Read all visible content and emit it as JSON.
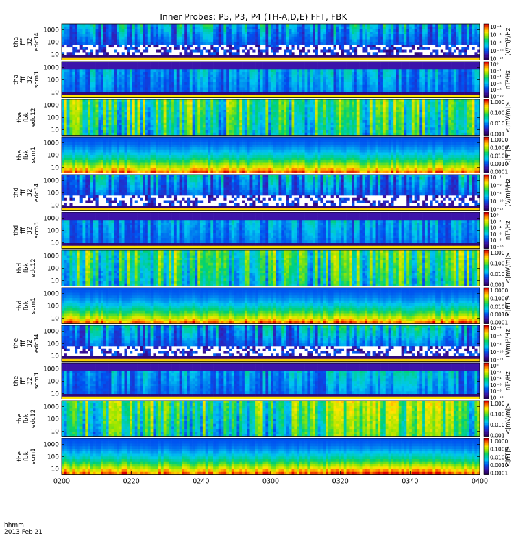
{
  "title": "Inner Probes: P5, P3, P4 (TH-A,D,E) FFT, FBK",
  "footer": {
    "line1": "hhmm",
    "line2": "2013 Feb 21"
  },
  "chart_data": {
    "type": "heatmap",
    "title": "Inner Probes: P5, P3, P4 (TH-A,D,E) FFT, FBK",
    "xlabel": "hhmm",
    "date": "2013 Feb 21",
    "x_ticks": [
      "0200",
      "0220",
      "0240",
      "0300",
      "0320",
      "0340",
      "0400"
    ],
    "x_range": [
      "0200",
      "0400"
    ],
    "y_scale": "log",
    "y_ticks": [
      "10",
      "100",
      "1000"
    ],
    "colormap": "rainbow (purple-blue-cyan-green-yellow-red)",
    "panels": [
      {
        "probe": "tha",
        "label": [
          "tha",
          "fff",
          "32",
          "edc34"
        ],
        "kind": "fff",
        "cbar_title": "(V/m)²/Hz",
        "cbar_ticks": [
          "10⁻⁴",
          "10⁻⁶",
          "10⁻⁸",
          "10⁻¹⁰",
          "10⁻¹²"
        ]
      },
      {
        "probe": "tha",
        "label": [
          "tha",
          "fff",
          "32",
          "scm3"
        ],
        "kind": "fff",
        "cbar_title": "nT²/Hz",
        "cbar_ticks": [
          "10⁰",
          "10⁻²",
          "10⁻⁴",
          "10⁻⁶",
          "10⁻⁸",
          "10⁻¹⁰"
        ]
      },
      {
        "probe": "tha",
        "label": [
          "tha",
          "fbk",
          "edc12"
        ],
        "kind": "fbk",
        "cbar_title": "<|mV/m|>",
        "cbar_ticks": [
          "1.000",
          "0.100",
          "0.010",
          "0.001"
        ]
      },
      {
        "probe": "tha",
        "label": [
          "tha",
          "fbk",
          "scm1"
        ],
        "kind": "fbk",
        "cbar_title": "<|nT|>",
        "cbar_ticks": [
          "1.0000",
          "0.1000",
          "0.0100",
          "0.0010",
          "0.0001"
        ]
      },
      {
        "probe": "thd",
        "label": [
          "thd",
          "fff",
          "32",
          "edc34"
        ],
        "kind": "fff",
        "cbar_title": "(V/m)²/Hz",
        "cbar_ticks": [
          "10⁻⁴",
          "10⁻⁶",
          "10⁻⁸",
          "10⁻¹⁰",
          "10⁻¹²"
        ]
      },
      {
        "probe": "thd",
        "label": [
          "thd",
          "fff",
          "32",
          "scm3"
        ],
        "kind": "fff",
        "cbar_title": "nT²/Hz",
        "cbar_ticks": [
          "10⁰",
          "10⁻²",
          "10⁻⁴",
          "10⁻⁶",
          "10⁻⁸",
          "10⁻¹⁰"
        ]
      },
      {
        "probe": "thd",
        "label": [
          "thd",
          "fbk",
          "edc12"
        ],
        "kind": "fbk",
        "cbar_title": "<|mV/m|>",
        "cbar_ticks": [
          "1.000",
          "0.100",
          "0.010",
          "0.001"
        ]
      },
      {
        "probe": "thd",
        "label": [
          "thd",
          "fbk",
          "scm1"
        ],
        "kind": "fbk",
        "cbar_title": "<|nT|>",
        "cbar_ticks": [
          "1.0000",
          "0.1000",
          "0.0100",
          "0.0010",
          "0.0001"
        ]
      },
      {
        "probe": "the",
        "label": [
          "the",
          "fff",
          "32",
          "edc34"
        ],
        "kind": "fff",
        "cbar_title": "(V/m)²/Hz",
        "cbar_ticks": [
          "10⁻⁴",
          "10⁻⁶",
          "10⁻⁸",
          "10⁻¹⁰",
          "10⁻¹²"
        ]
      },
      {
        "probe": "the",
        "label": [
          "the",
          "fff",
          "32",
          "scm3"
        ],
        "kind": "fff",
        "cbar_title": "nT²/Hz",
        "cbar_ticks": [
          "10⁰",
          "10⁻²",
          "10⁻⁴",
          "10⁻⁶",
          "10⁻⁸",
          "10⁻¹⁰"
        ]
      },
      {
        "probe": "the",
        "label": [
          "the",
          "fbk",
          "edc12"
        ],
        "kind": "fbk",
        "cbar_title": "<|mV/m|>",
        "cbar_ticks": [
          "1.000",
          "0.100",
          "0.010",
          "0.001"
        ]
      },
      {
        "probe": "the",
        "label": [
          "the",
          "fbk",
          "scm1"
        ],
        "kind": "fbk",
        "cbar_title": "<|nT|>",
        "cbar_ticks": [
          "1.0000",
          "0.1000",
          "0.0100",
          "0.0010",
          "0.0001"
        ]
      }
    ]
  }
}
